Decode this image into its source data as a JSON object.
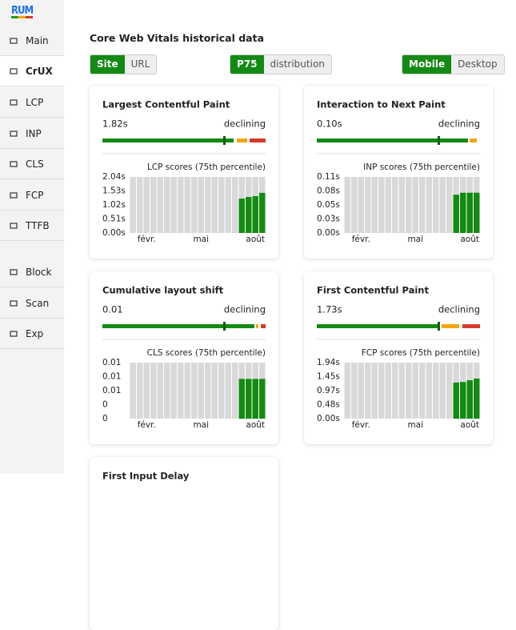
{
  "sidebar": {
    "logo": "RUM",
    "items": [
      "Main",
      "CrUX",
      "LCP",
      "INP",
      "CLS",
      "FCP",
      "TTFB",
      "Block",
      "Scan",
      "Exp"
    ],
    "active": "CrUX"
  },
  "header": {
    "title": "Core Web Vitals historical data"
  },
  "toggles": [
    {
      "options": [
        "Site",
        "URL"
      ],
      "active": "Site"
    },
    {
      "options": [
        "P75",
        "distribution"
      ],
      "active": "P75"
    },
    {
      "options": [
        "Mobile",
        "Desktop"
      ],
      "active": "Mobile"
    }
  ],
  "cards": [
    {
      "title": "Largest Contentful Paint",
      "value": "1.82s",
      "trend": "declining",
      "chart": {
        "type": "bar",
        "label": "LCP scores (75th percentile)",
        "color": "#138a13",
        "categories": [
          null,
          null,
          "févr.",
          null,
          null,
          null,
          null,
          null,
          null,
          null,
          "mai",
          null,
          null,
          null,
          null,
          null,
          null,
          null,
          "août",
          null
        ],
        "values": [
          null,
          null,
          null,
          null,
          null,
          null,
          null,
          null,
          null,
          null,
          null,
          null,
          null,
          null,
          null,
          null,
          1.25,
          1.31,
          1.34,
          1.46
        ],
        "ylim": [
          0,
          2.04
        ],
        "yticks": [
          {
            "value": 0,
            "label": "0.00s"
          },
          {
            "value": 0.51,
            "label": "0.51s"
          },
          {
            "value": 1.02,
            "label": "1.02s"
          },
          {
            "value": 1.53,
            "label": "1.53s"
          },
          {
            "value": 2.04,
            "label": "2.04s"
          }
        ]
      }
    },
    {
      "title": "Interaction to Next Paint",
      "value": "0.10s",
      "trend": "declining",
      "chart": {
        "type": "bar",
        "label": "INP scores (75th percentile)",
        "color": "#138a13",
        "categories": [
          null,
          null,
          "févr.",
          null,
          null,
          null,
          null,
          null,
          null,
          null,
          "mai",
          null,
          null,
          null,
          null,
          null,
          null,
          null,
          "août",
          null
        ],
        "values": [
          null,
          null,
          null,
          null,
          null,
          null,
          null,
          null,
          null,
          null,
          null,
          null,
          null,
          null,
          null,
          null,
          0.075,
          0.079,
          0.079,
          0.079
        ],
        "ylim": [
          0,
          0.11
        ],
        "yticks": [
          {
            "value": 0,
            "label": "0.00s"
          },
          {
            "value": 0.0275,
            "label": "0.03s"
          },
          {
            "value": 0.055,
            "label": "0.05s"
          },
          {
            "value": 0.0825,
            "label": "0.08s"
          },
          {
            "value": 0.11,
            "label": "0.11s"
          }
        ]
      }
    },
    {
      "title": "Cumulative layout shift",
      "value": "0.01",
      "trend": "declining",
      "chart": {
        "type": "bar",
        "label": "CLS scores (75th percentile)",
        "color": "#138a13",
        "categories": [
          null,
          null,
          "févr.",
          null,
          null,
          null,
          null,
          null,
          null,
          null,
          "mai",
          null,
          null,
          null,
          null,
          null,
          null,
          null,
          "août",
          null
        ],
        "values": [
          null,
          null,
          null,
          null,
          null,
          null,
          null,
          null,
          null,
          null,
          null,
          null,
          null,
          null,
          null,
          null,
          0.0071,
          0.0071,
          0.0071,
          0.0071
        ],
        "ylim": [
          0,
          0.01
        ],
        "yticks": [
          {
            "value": 0,
            "label": "0"
          },
          {
            "value": 0.0025,
            "label": "0"
          },
          {
            "value": 0.005,
            "label": "0.01"
          },
          {
            "value": 0.0075,
            "label": "0.01"
          },
          {
            "value": 0.01,
            "label": "0.01"
          }
        ]
      }
    },
    {
      "title": "First Contentful Paint",
      "value": "1.73s",
      "trend": "declining",
      "chart": {
        "type": "bar",
        "label": "FCP scores (75th percentile)",
        "color": "#138a13",
        "categories": [
          null,
          null,
          "févr.",
          null,
          null,
          null,
          null,
          null,
          null,
          null,
          "mai",
          null,
          null,
          null,
          null,
          null,
          null,
          null,
          "août",
          null
        ],
        "values": [
          null,
          null,
          null,
          null,
          null,
          null,
          null,
          null,
          null,
          null,
          null,
          null,
          null,
          null,
          null,
          null,
          1.25,
          1.27,
          1.33,
          1.39
        ],
        "ylim": [
          0,
          1.94
        ],
        "yticks": [
          {
            "value": 0,
            "label": "0.00s"
          },
          {
            "value": 0.485,
            "label": "0.48s"
          },
          {
            "value": 0.97,
            "label": "0.97s"
          },
          {
            "value": 1.455,
            "label": "1.45s"
          },
          {
            "value": 1.94,
            "label": "1.94s"
          }
        ]
      }
    },
    {
      "title": "First Input Delay"
    }
  ]
}
